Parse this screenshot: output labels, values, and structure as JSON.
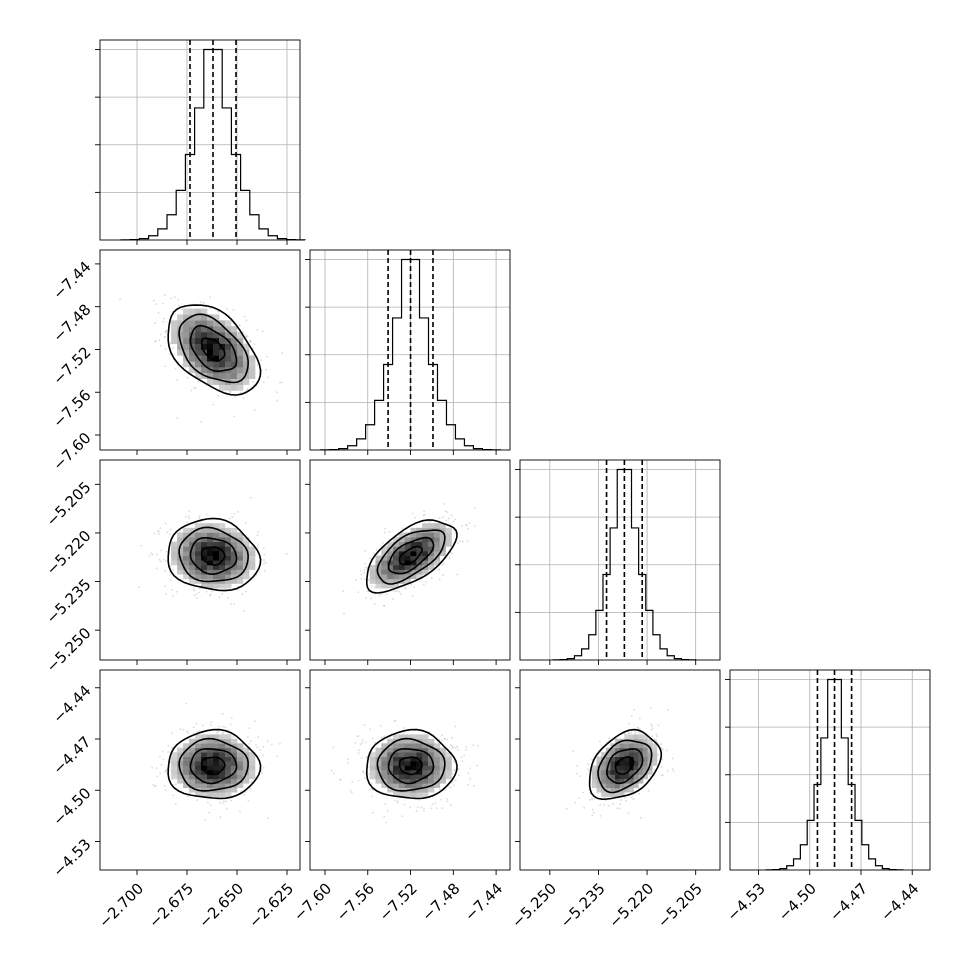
{
  "chart_data": {
    "type": "corner",
    "parameters": [
      {
        "center": -2.662,
        "q16": -2.6735,
        "q84": -2.6505,
        "sigma": 0.0115,
        "range": [
          -2.7185,
          -2.6185
        ],
        "ticks": [
          -2.7,
          -2.675,
          -2.65,
          -2.625
        ],
        "tick_labels": [
          "−2.700",
          "−2.675",
          "−2.650",
          "−2.625"
        ]
      },
      {
        "center": -7.52,
        "q16": -7.541,
        "q84": -7.499,
        "sigma": 0.021,
        "range": [
          -7.614,
          -7.427
        ],
        "ticks": [
          -7.6,
          -7.56,
          -7.52,
          -7.48,
          -7.44
        ],
        "tick_labels": [
          "−7.60",
          "−7.56",
          "−7.52",
          "−7.48",
          "−7.44"
        ]
      },
      {
        "center": -5.227,
        "q16": -5.2325,
        "q84": -5.2215,
        "sigma": 0.0055,
        "range": [
          -5.2592,
          -5.1975
        ],
        "ticks": [
          -5.25,
          -5.235,
          -5.22,
          -5.205
        ],
        "tick_labels": [
          "−5.250",
          "−5.235",
          "−5.220",
          "−5.205"
        ]
      },
      {
        "center": -4.4855,
        "q16": -4.4955,
        "q84": -4.4755,
        "sigma": 0.01,
        "range": [
          -4.5467,
          -4.4296
        ],
        "ticks": [
          -4.53,
          -4.5,
          -4.47,
          -4.44
        ],
        "tick_labels": [
          "−4.53",
          "−4.50",
          "−4.47",
          "−4.44"
        ]
      }
    ],
    "correlations": {
      "1-0": -0.45,
      "2-0": -0.1,
      "2-1": 0.6,
      "3-0": 0.0,
      "3-1": 0.0,
      "3-2": 0.35
    },
    "grid": true,
    "histogram_bins": 20,
    "quantiles": [
      0.16,
      0.5,
      0.84
    ],
    "colors": {
      "contour": "#000000",
      "points": "#999999",
      "grid": "#b0b0b0",
      "density_dark": "#000000"
    }
  }
}
